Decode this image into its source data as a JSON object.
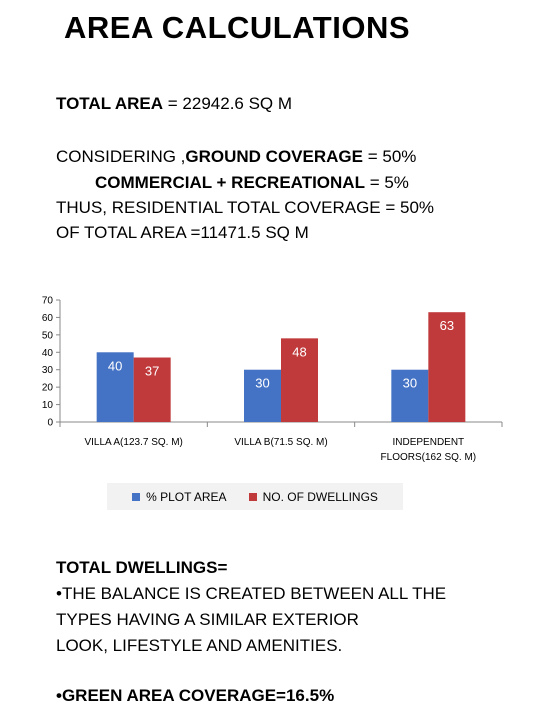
{
  "header": {
    "title": "AREA CALCULATIONS"
  },
  "calculations": {
    "total_area_label": "TOTAL AREA",
    "total_area_value": " = 22942.6 SQ M",
    "considering_prefix": "CONSIDERING ,",
    "ground_coverage_label": "GROUND COVERAGE",
    "ground_coverage_value": " = 50%",
    "commercial_label": "COMMERCIAL + RECREATIONAL",
    "commercial_value": " = 5%",
    "residential_line": "THUS, RESIDENTIAL TOTAL COVERAGE = 50%",
    "of_total_line": "OF TOTAL AREA =11471.5 SQ M"
  },
  "chart_data": {
    "type": "bar",
    "categories": [
      "VILLA A(123.7 SQ. M)",
      "VILLA B(71.5 SQ. M)",
      "INDEPENDENT FLOORS(162 SQ. M)"
    ],
    "category_lines": [
      [
        "VILLA A(123.7 SQ. M)"
      ],
      [
        "VILLA B(71.5 SQ. M)"
      ],
      [
        "INDEPENDENT",
        "FLOORS(162 SQ. M)"
      ]
    ],
    "series": [
      {
        "name": "% PLOT AREA",
        "values": [
          40,
          30,
          30
        ],
        "color": "#4472c4"
      },
      {
        "name": "NO. OF DWELLINGS",
        "values": [
          37,
          48,
          63
        ],
        "color": "#c0393b"
      }
    ],
    "data_labels": [
      [
        "40",
        "30",
        "30"
      ],
      [
        "37",
        "48",
        "63"
      ]
    ],
    "ylim": [
      0,
      70
    ],
    "yticks": [
      0,
      10,
      20,
      30,
      40,
      50,
      60,
      70
    ],
    "grid": false,
    "legend": "bottom",
    "title": "",
    "xlabel": "",
    "ylabel": ""
  },
  "footer": {
    "total_dwellings": "TOTAL DWELLINGS=",
    "balance_line_1": "•THE BALANCE IS CREATED BETWEEN  ALL THE",
    "balance_line_2": "TYPES HAVING A SIMILAR EXTERIOR",
    "balance_line_3": "LOOK, LIFESTYLE  AND AMENITIES.",
    "green_area": "•GREEN AREA COVERAGE=16.5%"
  }
}
